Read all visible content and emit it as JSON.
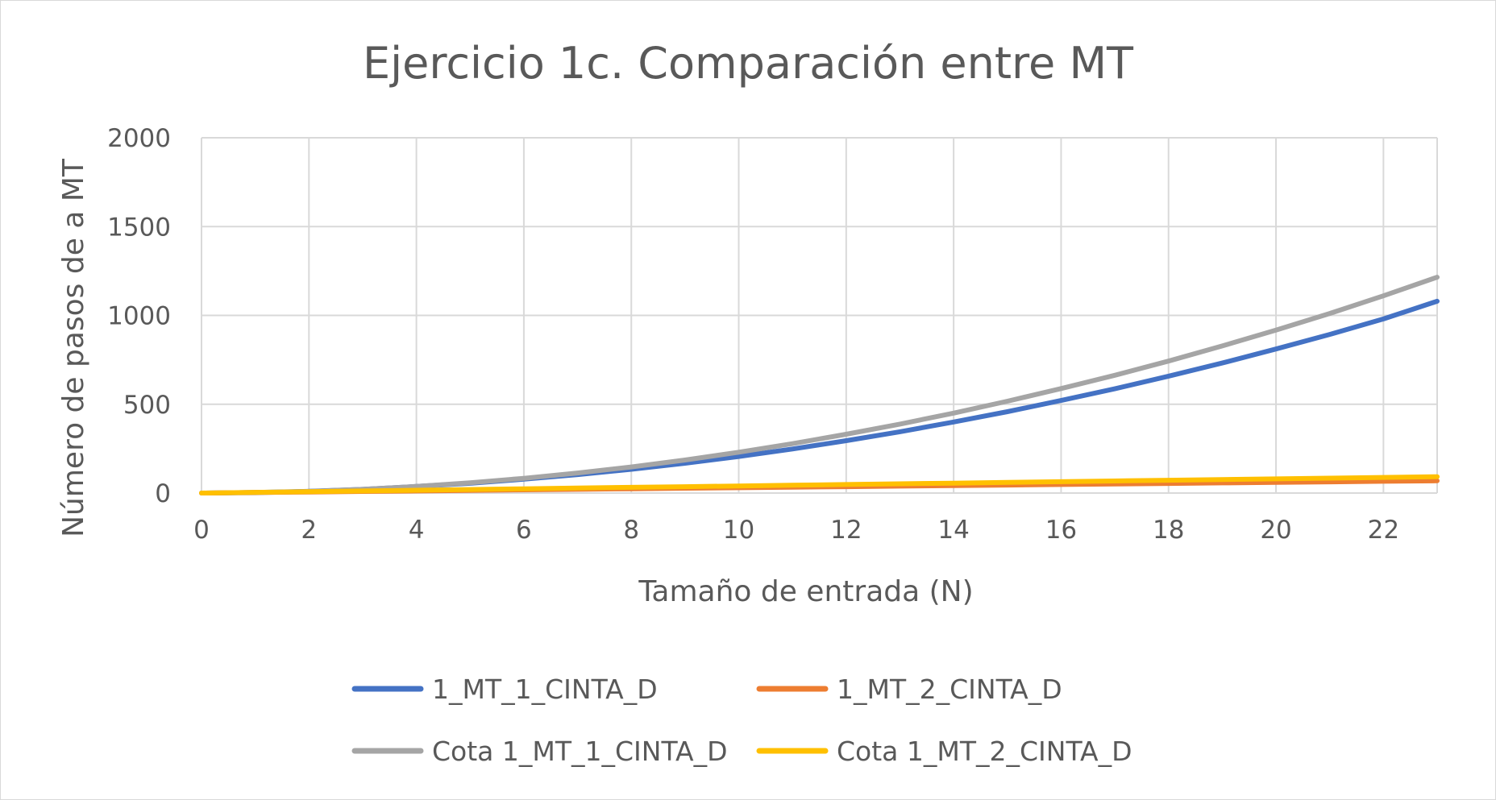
{
  "chart_data": {
    "type": "line",
    "title": "Ejercicio 1c. Comparación entre MT",
    "xlabel": "Tamaño de entrada (N)",
    "ylabel": "Número de pasos de a MT",
    "xlim": [
      0,
      23
    ],
    "ylim": [
      0,
      2000
    ],
    "x_ticks": [
      0,
      2,
      4,
      6,
      8,
      10,
      12,
      14,
      16,
      18,
      20,
      22
    ],
    "y_ticks": [
      0,
      500,
      1000,
      1500,
      2000
    ],
    "grid": true,
    "legend_position": "bottom",
    "x": [
      0,
      1,
      2,
      3,
      4,
      5,
      6,
      7,
      8,
      9,
      10,
      11,
      12,
      13,
      14,
      15,
      16,
      17,
      18,
      19,
      20,
      21,
      22,
      23
    ],
    "series": [
      {
        "name": "1_MT_1_CINTA_D",
        "color": "#4472c4",
        "values": [
          0,
          3,
          10,
          21,
          37,
          55,
          78,
          104,
          134,
          168,
          206,
          248,
          295,
          345,
          400,
          458,
          521,
          587,
          658,
          732,
          811,
          893,
          980,
          1080
        ]
      },
      {
        "name": "1_MT_2_CINTA_D",
        "color": "#ed7d31",
        "values": [
          0,
          3,
          6,
          9,
          12,
          15,
          18,
          21,
          24,
          27,
          30,
          33,
          36,
          39,
          42,
          45,
          48,
          51,
          54,
          57,
          60,
          63,
          66,
          69
        ]
      },
      {
        "name": "Cota 1_MT_1_CINTA_D",
        "color": "#a5a5a5",
        "values": [
          0,
          2,
          9,
          21,
          37,
          58,
          83,
          113,
          147,
          186,
          230,
          278,
          331,
          388,
          450,
          517,
          588,
          663,
          743,
          828,
          917,
          1011,
          1110,
          1215
        ]
      },
      {
        "name": "Cota 1_MT_2_CINTA_D",
        "color": "#ffc000",
        "values": [
          0,
          4,
          8,
          12,
          16,
          20,
          24,
          28,
          32,
          36,
          40,
          44,
          48,
          52,
          56,
          60,
          64,
          68,
          72,
          76,
          80,
          84,
          88,
          92
        ]
      }
    ]
  }
}
